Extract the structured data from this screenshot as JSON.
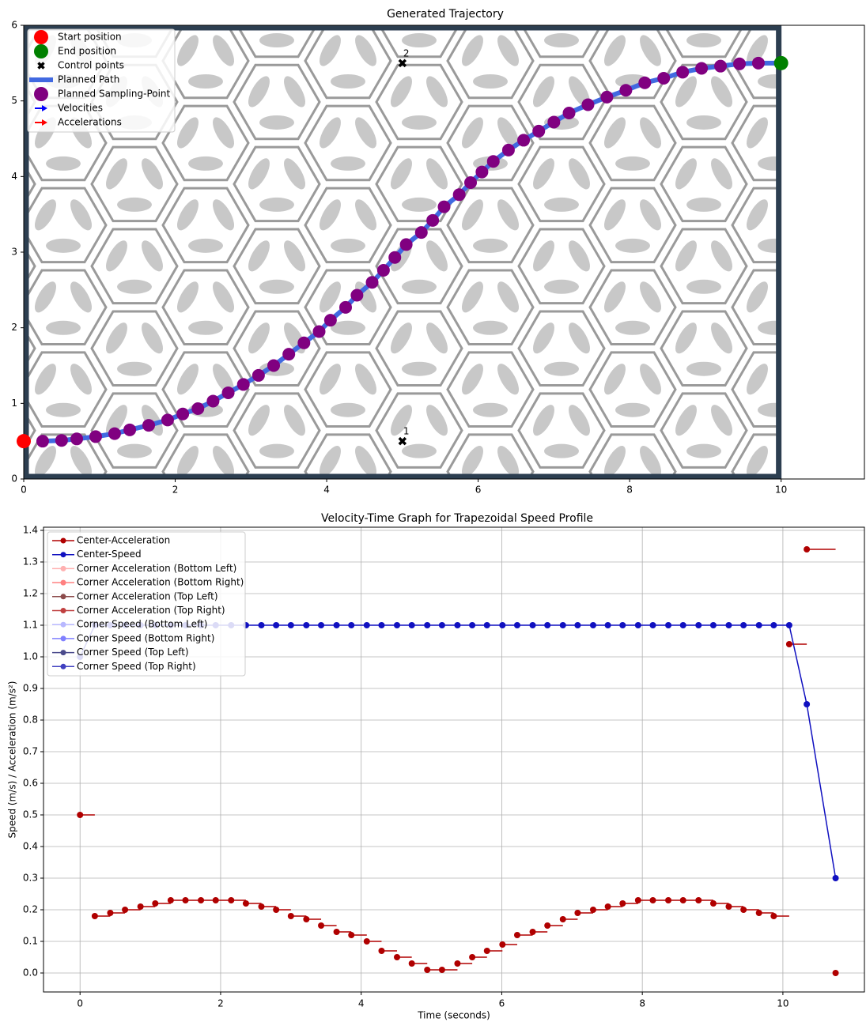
{
  "chart_data": [
    {
      "type": "trajectory",
      "title": "Generated Trajectory",
      "xlim": [
        0,
        11.1
      ],
      "ylim": [
        0,
        6
      ],
      "xticks": [
        0,
        2,
        4,
        6,
        8,
        10
      ],
      "yticks": [
        0,
        1,
        2,
        3,
        4,
        5,
        6
      ],
      "legend": "upper left",
      "start": {
        "name": "Start position",
        "color": "#ff0000",
        "x": 0,
        "y": 0.5
      },
      "end": {
        "name": "End position",
        "color": "#008000",
        "x": 10,
        "y": 5.5
      },
      "control_points": {
        "name": "Control points",
        "color": "#000000",
        "labels": [
          "1",
          "2"
        ],
        "x": [
          5,
          5
        ],
        "y": [
          0.5,
          5.5
        ]
      },
      "path": {
        "name": "Planned Path",
        "color": "#4169e1"
      },
      "samples": {
        "name": "Planned Sampling-Point",
        "color": "#800080",
        "x": [
          0.25,
          0.5,
          0.7,
          0.95,
          1.2,
          1.4,
          1.65,
          1.9,
          2.1,
          2.3,
          2.5,
          2.7,
          2.9,
          3.1,
          3.3,
          3.5,
          3.7,
          3.9,
          4.05,
          4.25,
          4.4,
          4.6,
          4.75,
          4.9,
          5.05,
          5.25,
          5.4,
          5.55,
          5.75,
          5.9,
          6.05,
          6.2,
          6.4,
          6.6,
          6.8,
          7.0,
          7.2,
          7.45,
          7.7,
          7.95,
          8.2,
          8.45,
          8.7,
          8.95,
          9.2,
          9.45,
          9.7,
          10
        ],
        "y": [
          0.5,
          0.51,
          0.53,
          0.56,
          0.6,
          0.65,
          0.71,
          0.78,
          0.86,
          0.93,
          1.03,
          1.14,
          1.25,
          1.37,
          1.5,
          1.65,
          1.8,
          1.95,
          2.1,
          2.27,
          2.43,
          2.6,
          2.76,
          2.93,
          3.1,
          3.26,
          3.42,
          3.6,
          3.76,
          3.92,
          4.06,
          4.2,
          4.35,
          4.48,
          4.6,
          4.72,
          4.84,
          4.95,
          5.05,
          5.14,
          5.24,
          5.3,
          5.38,
          5.43,
          5.46,
          5.49,
          5.5,
          5.5
        ]
      },
      "velocities": {
        "name": "Velocities",
        "color": "#0000ff"
      },
      "accelerations": {
        "name": "Accelerations",
        "color": "#ff0000"
      }
    },
    {
      "type": "line",
      "title": "Velocity-Time Graph for Trapezoidal Speed Profile",
      "x_label": "Time (seconds)",
      "y_label": "Speed (m/s) / Acceleration (m/s²)",
      "xlim": [
        -0.52,
        11.16
      ],
      "ylim": [
        -0.06,
        1.41
      ],
      "grid": true,
      "legend": "upper left",
      "xticks": [
        0,
        2,
        4,
        6,
        8,
        10
      ],
      "yticks": [
        {
          "value": 0,
          "label": "0.0"
        },
        0.1,
        0.2,
        0.3,
        0.4,
        0.5,
        0.6,
        0.7,
        0.8,
        0.9,
        {
          "value": 1,
          "label": "1.0"
        },
        1.1,
        1.2,
        1.3,
        1.4
      ],
      "x": [
        0,
        0.21,
        0.43,
        0.64,
        0.86,
        1.07,
        1.29,
        1.5,
        1.72,
        1.93,
        2.15,
        2.36,
        2.58,
        2.79,
        3.0,
        3.22,
        3.43,
        3.65,
        3.86,
        4.08,
        4.29,
        4.51,
        4.72,
        4.94,
        5.15,
        5.37,
        5.58,
        5.79,
        6.01,
        6.22,
        6.44,
        6.65,
        6.87,
        7.08,
        7.3,
        7.51,
        7.72,
        7.94,
        8.15,
        8.37,
        8.58,
        8.8,
        9.01,
        9.23,
        9.44,
        9.66,
        9.87,
        10.09,
        10.34,
        10.75
      ],
      "series": [
        {
          "name": "Center-Acceleration",
          "color": "#b00000",
          "style": "hsteps",
          "values": [
            0.5,
            0.18,
            0.19,
            0.2,
            0.21,
            0.22,
            0.23,
            0.23,
            0.23,
            0.23,
            0.23,
            0.22,
            0.21,
            0.2,
            0.18,
            0.17,
            0.15,
            0.13,
            0.12,
            0.1,
            0.07,
            0.05,
            0.03,
            0.01,
            0.01,
            0.03,
            0.05,
            0.07,
            0.09,
            0.12,
            0.13,
            0.15,
            0.17,
            0.19,
            0.2,
            0.21,
            0.22,
            0.23,
            0.23,
            0.23,
            0.23,
            0.23,
            0.22,
            0.21,
            0.2,
            0.19,
            0.18,
            1.04,
            1.34,
            0
          ]
        },
        {
          "name": "Center-Speed",
          "color": "#1010c0",
          "style": "line",
          "values": [
            1.0,
            1.1,
            1.1,
            1.1,
            1.1,
            1.1,
            1.1,
            1.1,
            1.1,
            1.1,
            1.1,
            1.1,
            1.1,
            1.1,
            1.1,
            1.1,
            1.1,
            1.1,
            1.1,
            1.1,
            1.1,
            1.1,
            1.1,
            1.1,
            1.1,
            1.1,
            1.1,
            1.1,
            1.1,
            1.1,
            1.1,
            1.1,
            1.1,
            1.1,
            1.1,
            1.1,
            1.1,
            1.1,
            1.1,
            1.1,
            1.1,
            1.1,
            1.1,
            1.1,
            1.1,
            1.1,
            1.1,
            1.1,
            0.85,
            0.3
          ]
        }
      ],
      "legend_entries": [
        {
          "name": "Corner Acceleration (Bottom Left)",
          "color": "#ffb0b0"
        },
        {
          "name": "Corner Acceleration (Bottom Right)",
          "color": "#ff8080"
        },
        {
          "name": "Corner Acceleration (Top Left)",
          "color": "#8b4a4a"
        },
        {
          "name": "Corner Acceleration (Top Right)",
          "color": "#c04040"
        },
        {
          "name": "Corner Speed (Bottom Left)",
          "color": "#b8b8ff"
        },
        {
          "name": "Corner Speed (Bottom Right)",
          "color": "#8080ff"
        },
        {
          "name": "Corner Speed (Top Left)",
          "color": "#4a4a8b"
        },
        {
          "name": "Corner Speed (Top Right)",
          "color": "#4040c0"
        }
      ]
    }
  ]
}
